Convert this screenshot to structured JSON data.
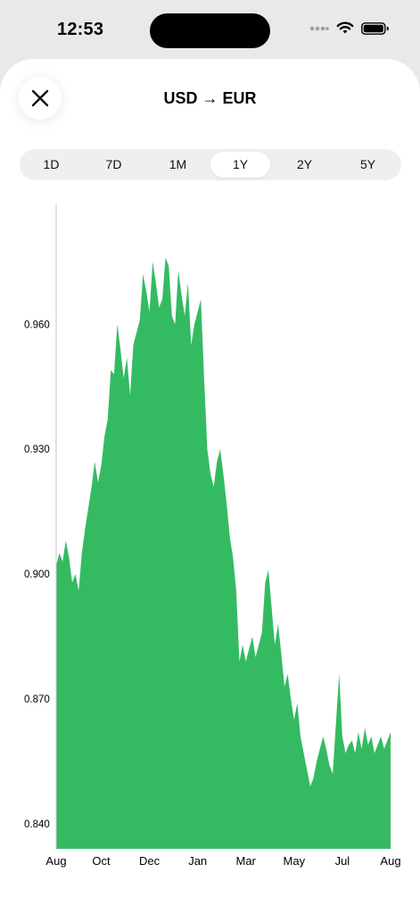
{
  "status_bar": {
    "time": "12:53",
    "icons": [
      "cellular-icon",
      "wifi-icon",
      "battery-icon"
    ]
  },
  "sheet": {
    "title": "USD → EUR",
    "close_icon": "close-icon",
    "range_tabs": [
      {
        "label": "1D",
        "selected": false
      },
      {
        "label": "7D",
        "selected": false
      },
      {
        "label": "1M",
        "selected": false
      },
      {
        "label": "1Y",
        "selected": true
      },
      {
        "label": "2Y",
        "selected": false
      },
      {
        "label": "5Y",
        "selected": false
      }
    ]
  },
  "colors": {
    "area_fill": "#34bb62",
    "axis_line": "#c7c7cc",
    "tab_track": "#efeff0"
  },
  "chart_data": {
    "type": "area",
    "title": "",
    "xlabel": "",
    "ylabel": "",
    "y_tick_labels": [
      "0.960",
      "0.930",
      "0.900",
      "0.870",
      "0.840"
    ],
    "y_ticks": [
      0.96,
      0.93,
      0.9,
      0.87,
      0.84
    ],
    "ylim": [
      0.834,
      0.989
    ],
    "x_tick_labels": [
      "Aug",
      "Oct",
      "Dec",
      "Jan",
      "Mar",
      "May",
      "Jul",
      "Aug"
    ],
    "x_ticks": [
      0,
      1.4,
      2.9,
      4.4,
      5.9,
      7.4,
      8.9,
      10.4
    ],
    "xlim": [
      0,
      10.4
    ],
    "grid": false,
    "legend": "none",
    "x": [
      0,
      0.1,
      0.2,
      0.3,
      0.4,
      0.5,
      0.6,
      0.7,
      0.8,
      0.9,
      1.0,
      1.1,
      1.2,
      1.3,
      1.4,
      1.5,
      1.6,
      1.7,
      1.8,
      1.9,
      2.0,
      2.1,
      2.2,
      2.3,
      2.4,
      2.5,
      2.6,
      2.7,
      2.8,
      2.9,
      3.0,
      3.1,
      3.2,
      3.3,
      3.4,
      3.5,
      3.6,
      3.7,
      3.8,
      3.9,
      4.0,
      4.1,
      4.2,
      4.3,
      4.4,
      4.5,
      4.6,
      4.7,
      4.8,
      4.9,
      5.0,
      5.1,
      5.2,
      5.3,
      5.4,
      5.5,
      5.6,
      5.7,
      5.8,
      5.9,
      6.0,
      6.1,
      6.2,
      6.3,
      6.4,
      6.5,
      6.6,
      6.7,
      6.8,
      6.9,
      7.0,
      7.1,
      7.2,
      7.3,
      7.4,
      7.5,
      7.6,
      7.7,
      7.8,
      7.9,
      8.0,
      8.1,
      8.2,
      8.3,
      8.4,
      8.5,
      8.6,
      8.7,
      8.8,
      8.9,
      9.0,
      9.1,
      9.2,
      9.3,
      9.4,
      9.5,
      9.6,
      9.7,
      9.8,
      9.9,
      10.0,
      10.1,
      10.2,
      10.3,
      10.4
    ],
    "values": [
      0.902,
      0.905,
      0.903,
      0.908,
      0.904,
      0.898,
      0.9,
      0.896,
      0.905,
      0.911,
      0.916,
      0.921,
      0.927,
      0.922,
      0.926,
      0.933,
      0.937,
      0.949,
      0.948,
      0.96,
      0.954,
      0.947,
      0.952,
      0.943,
      0.955,
      0.958,
      0.961,
      0.972,
      0.968,
      0.963,
      0.975,
      0.97,
      0.964,
      0.966,
      0.976,
      0.974,
      0.962,
      0.96,
      0.973,
      0.967,
      0.962,
      0.97,
      0.955,
      0.96,
      0.963,
      0.966,
      0.947,
      0.93,
      0.924,
      0.921,
      0.927,
      0.93,
      0.924,
      0.917,
      0.909,
      0.904,
      0.896,
      0.879,
      0.883,
      0.879,
      0.882,
      0.885,
      0.88,
      0.883,
      0.886,
      0.898,
      0.901,
      0.892,
      0.883,
      0.888,
      0.881,
      0.873,
      0.876,
      0.87,
      0.865,
      0.869,
      0.861,
      0.857,
      0.853,
      0.849,
      0.851,
      0.855,
      0.858,
      0.861,
      0.858,
      0.854,
      0.852,
      0.864,
      0.876,
      0.861,
      0.857,
      0.859,
      0.86,
      0.857,
      0.862,
      0.858,
      0.863,
      0.859,
      0.861,
      0.857,
      0.859,
      0.861,
      0.858,
      0.86,
      0.862
    ]
  }
}
